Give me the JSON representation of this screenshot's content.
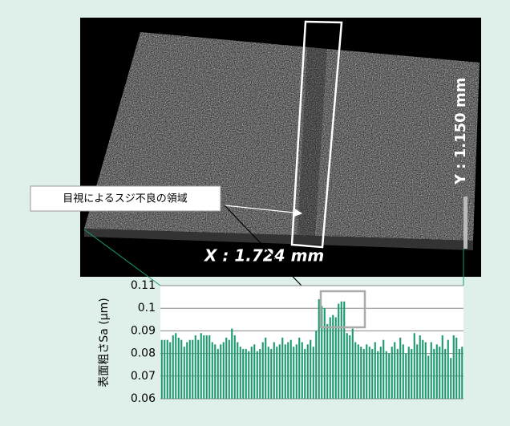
{
  "image": {
    "x_label": "X : 1.724 mm",
    "y_label": "Y : 1.150 mm",
    "callout": "目視によるスジ不良の領域"
  },
  "chart_data": {
    "type": "bar",
    "y_label": "表面粗さSa (μm)",
    "color": "#1a9a6e",
    "grid": true,
    "ylim": [
      0.06,
      0.11
    ],
    "yticks": [
      0.06,
      0.07,
      0.08,
      0.09,
      0.1,
      0.11
    ],
    "categories": [
      null,
      null,
      null,
      null,
      null,
      null,
      null,
      null,
      null,
      null,
      null,
      null,
      null,
      null,
      null,
      null,
      null,
      null,
      null,
      null,
      null,
      null,
      null,
      null,
      null,
      null,
      null,
      null,
      null,
      null,
      null,
      null,
      null,
      null,
      null,
      null,
      null,
      null,
      null,
      null,
      null,
      null,
      null,
      null,
      null,
      null,
      null,
      null,
      null,
      null,
      null,
      null,
      null,
      null,
      null,
      null,
      null,
      null,
      null,
      null,
      null,
      null,
      null,
      null,
      null,
      null,
      null,
      null,
      null,
      null,
      null,
      null,
      null,
      null,
      null,
      null,
      null,
      null,
      null,
      null,
      null,
      null,
      null,
      null,
      null,
      null,
      null,
      null,
      null,
      null,
      null,
      null,
      null,
      null,
      null,
      null,
      null,
      null,
      null,
      null,
      null,
      null,
      null,
      null,
      null,
      null,
      null,
      null
    ],
    "values": [
      0.086,
      0.086,
      0.086,
      0.085,
      0.088,
      0.089,
      0.087,
      0.086,
      0.083,
      0.085,
      0.086,
      0.086,
      0.088,
      0.086,
      0.089,
      0.088,
      0.088,
      0.088,
      0.085,
      0.084,
      0.082,
      0.084,
      0.085,
      0.087,
      0.086,
      0.091,
      0.088,
      0.085,
      0.083,
      0.082,
      0.082,
      0.081,
      0.083,
      0.084,
      0.081,
      0.082,
      0.085,
      0.087,
      0.083,
      0.082,
      0.085,
      0.083,
      0.084,
      0.087,
      0.084,
      0.085,
      0.086,
      0.083,
      0.084,
      0.087,
      0.085,
      0.082,
      0.084,
      0.086,
      0.083,
      0.09,
      0.104,
      0.101,
      0.1,
      0.093,
      0.096,
      0.097,
      0.096,
      0.102,
      0.103,
      0.103,
      0.089,
      0.088,
      0.091,
      0.085,
      0.084,
      0.083,
      0.082,
      0.084,
      0.083,
      0.082,
      0.085,
      0.081,
      0.083,
      0.086,
      0.081,
      0.08,
      0.083,
      0.085,
      0.082,
      0.087,
      0.084,
      0.08,
      0.083,
      0.082,
      0.089,
      0.084,
      0.088,
      0.086,
      0.085,
      0.079,
      0.085,
      0.082,
      0.084,
      0.083,
      0.088,
      0.082,
      0.086,
      0.078,
      0.088,
      0.087,
      0.082,
      0.083
    ]
  }
}
